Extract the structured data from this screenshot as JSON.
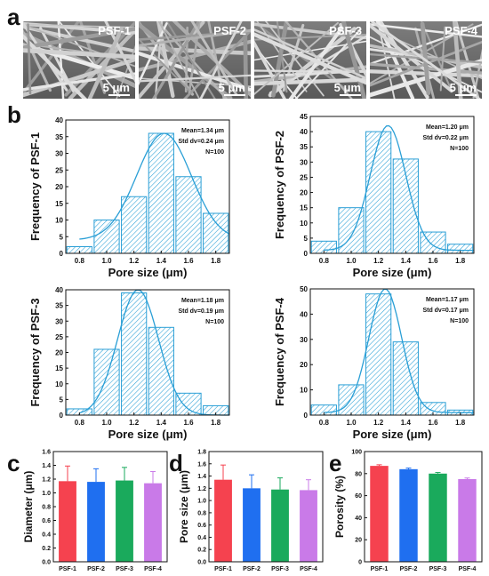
{
  "panel_labels": {
    "a": "a",
    "b": "b",
    "c": "c",
    "d": "d",
    "e": "e"
  },
  "sem_images": [
    {
      "label": "PSF-1",
      "scale": "5 μm"
    },
    {
      "label": "PSF-2",
      "scale": "5 μm"
    },
    {
      "label": "PSF-3",
      "scale": "5 μm"
    },
    {
      "label": "PSF-4",
      "scale": "5 μm"
    }
  ],
  "colors": {
    "histogram": "#2a9fd6",
    "bar_red": "#f5424f",
    "bar_blue": "#1f6ff0",
    "bar_green": "#1aaa5c",
    "bar_purple": "#c97ae8",
    "sem_background": "#6e6e6e"
  },
  "chart_data": [
    {
      "type": "bar",
      "panel": "b",
      "categories": [
        "0.8",
        "1.0",
        "1.2",
        "1.4",
        "1.6",
        "1.8"
      ],
      "values": [
        2,
        10,
        17,
        36,
        23,
        12
      ],
      "fit_curve": true,
      "xlabel": "Pore size (μm)",
      "ylabel": "Frequency of PSF-1",
      "ylim": [
        0,
        40
      ],
      "yticks": [
        0,
        5,
        10,
        15,
        20,
        25,
        30,
        35,
        40
      ],
      "annotations": [
        "Mean=1.34 μm",
        "Std dv=0.24 μm",
        "N=100"
      ],
      "fit": {
        "mean": 1.42,
        "sd": 0.2,
        "peak": 36,
        "base": 4
      }
    },
    {
      "type": "bar",
      "panel": "b",
      "categories": [
        "0.8",
        "1.0",
        "1.2",
        "1.4",
        "1.6",
        "1.8"
      ],
      "values": [
        4,
        15,
        40,
        31,
        7,
        3
      ],
      "fit_curve": true,
      "xlabel": "Pore size (μm)",
      "ylabel": "Frequency of PSF-2",
      "ylim": [
        0,
        45
      ],
      "yticks": [
        0,
        5,
        10,
        15,
        20,
        25,
        30,
        35,
        40,
        45
      ],
      "annotations": [
        "Mean=1.20 μm",
        "Std dv=0.22 μm",
        "N=100"
      ],
      "fit": {
        "mean": 1.27,
        "sd": 0.13,
        "peak": 42,
        "base": 1
      }
    },
    {
      "type": "bar",
      "panel": "b",
      "categories": [
        "0.8",
        "1.0",
        "1.2",
        "1.4",
        "1.6",
        "1.8"
      ],
      "values": [
        2,
        21,
        39,
        28,
        7,
        3
      ],
      "fit_curve": true,
      "xlabel": "Pore size (μm)",
      "ylabel": "Frequency of PSF-3",
      "ylim": [
        0,
        40
      ],
      "yticks": [
        0,
        5,
        10,
        15,
        20,
        25,
        30,
        35,
        40
      ],
      "annotations": [
        "Mean=1.18 μm",
        "Std dv=0.19 μm",
        "N=100"
      ],
      "fit": {
        "mean": 1.23,
        "sd": 0.15,
        "peak": 40,
        "base": 0
      }
    },
    {
      "type": "bar",
      "panel": "b",
      "categories": [
        "0.8",
        "1.0",
        "1.2",
        "1.4",
        "1.6",
        "1.8"
      ],
      "values": [
        4,
        12,
        48,
        29,
        5,
        2
      ],
      "fit_curve": true,
      "xlabel": "Pore size (μm)",
      "ylabel": "Frequency of PSF-4",
      "ylim": [
        0,
        50
      ],
      "yticks": [
        0,
        10,
        20,
        30,
        40,
        50
      ],
      "annotations": [
        "Mean=1.17 μm",
        "Std dv=0.17 μm",
        "N=100"
      ],
      "fit": {
        "mean": 1.25,
        "sd": 0.12,
        "peak": 50,
        "base": 1
      }
    },
    {
      "type": "bar",
      "panel": "c",
      "categories": [
        "PSF-1",
        "PSF-2",
        "PSF-3",
        "PSF-4"
      ],
      "values": [
        1.17,
        1.16,
        1.18,
        1.14
      ],
      "errors": [
        0.22,
        0.19,
        0.19,
        0.17
      ],
      "ylabel": "Diameter (μm)",
      "ylim": [
        0,
        1.6
      ],
      "yticks": [
        "0.0",
        "0.2",
        "0.4",
        "0.6",
        "0.8",
        "1.0",
        "1.2",
        "1.4",
        "1.6"
      ]
    },
    {
      "type": "bar",
      "panel": "d",
      "categories": [
        "PSF-1",
        "PSF-2",
        "PSF-3",
        "PSF-4"
      ],
      "values": [
        1.34,
        1.2,
        1.18,
        1.17
      ],
      "errors": [
        0.24,
        0.22,
        0.19,
        0.17
      ],
      "ylabel": "Pore size (μm)",
      "ylim": [
        0,
        1.8
      ],
      "yticks": [
        "0.0",
        "0.2",
        "0.4",
        "0.6",
        "0.8",
        "1.0",
        "1.2",
        "1.4",
        "1.6",
        "1.8"
      ]
    },
    {
      "type": "bar",
      "panel": "e",
      "categories": [
        "PSF-1",
        "PSF-2",
        "PSF-3",
        "PSF-4"
      ],
      "values": [
        87,
        84,
        80,
        75
      ],
      "errors": [
        1,
        1,
        1,
        1
      ],
      "ylabel": "Porosity (%)",
      "ylim": [
        0,
        100
      ],
      "yticks": [
        "0",
        "20",
        "40",
        "60",
        "80",
        "100"
      ]
    }
  ]
}
